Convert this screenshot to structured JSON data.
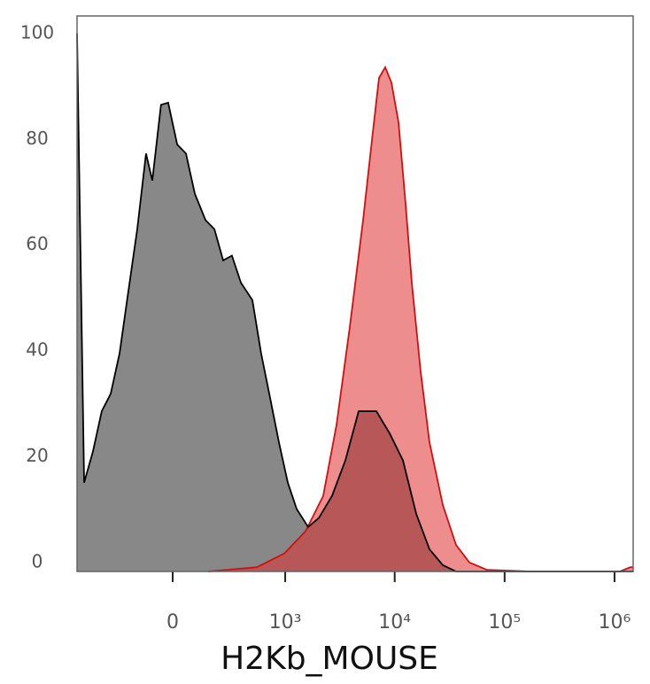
{
  "chart_data": {
    "type": "histogram-overlay",
    "x_label": "H2Kb_MOUSE",
    "xscale": "asinh",
    "xlim": [
      -695,
      1478000
    ],
    "xticks": [
      0,
      {
        "value": 1000,
        "label": "10³"
      },
      {
        "value": 10000,
        "label": "10⁴"
      },
      {
        "value": 100000,
        "label": "10⁵"
      },
      {
        "value": 1000000,
        "label": "10⁶"
      }
    ],
    "ylim": [
      0,
      105
    ],
    "yticks": [
      0,
      20,
      40,
      60,
      80,
      100
    ],
    "series": [
      {
        "color": "#888888",
        "line_color": "#000000",
        "x": [
          -695,
          -595,
          -489,
          -400,
          -324,
          -259,
          -204,
          -155,
          -112,
          -84,
          -47,
          -18,
          18,
          54,
          92,
          142,
          189,
          242,
          303,
          376,
          489,
          595,
          723,
          874,
          1057,
          1276,
          1628,
          2034,
          2691,
          3555,
          4695,
          6808,
          8993,
          11880,
          15700,
          20720,
          27390,
          36180,
          1478000
        ],
        "values": [
          101.7,
          16.8,
          22.7,
          30.3,
          33.6,
          41.2,
          52.9,
          64.7,
          79.0,
          73.9,
          88.2,
          88.6,
          80.7,
          79.0,
          71.4,
          66.4,
          64.7,
          58.8,
          59.7,
          54.6,
          51.3,
          41.2,
          32.8,
          24.4,
          16.8,
          11.8,
          8.4,
          10.1,
          14.3,
          21.0,
          30.3,
          30.3,
          26.1,
          21.0,
          10.9,
          4.2,
          1.2,
          0,
          0
        ]
      },
      {
        "color": "#e03030",
        "line_color": "#d01010",
        "x": [
          155,
          540,
          980,
          1538,
          2233,
          2951,
          3902,
          5155,
          6206,
          7200,
          8200,
          9340,
          10830,
          12550,
          14300,
          17210,
          20720,
          27390,
          36180,
          47770,
          69140,
          175200,
          1120000,
          1398000,
          1478000
        ],
        "values": [
          0,
          0.8,
          3.4,
          7.6,
          14.3,
          27.7,
          46.2,
          66.4,
          81.5,
          93.3,
          95.3,
          92.4,
          84.9,
          69.7,
          54.6,
          37.8,
          24.4,
          12.6,
          5.0,
          1.7,
          0.3,
          0,
          0,
          0.8,
          0.8
        ]
      }
    ]
  }
}
